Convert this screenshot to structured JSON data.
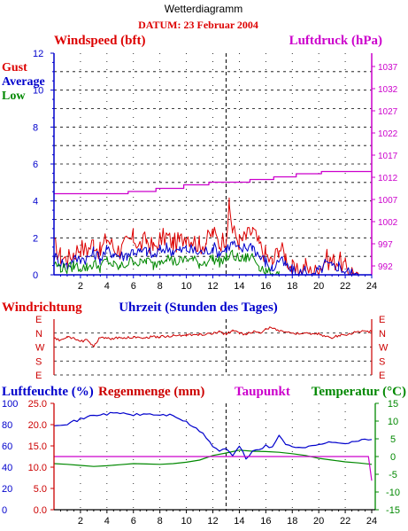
{
  "header": {
    "title": "Wetterdiagramm",
    "date": "DATUM: 23 Februar 2004"
  },
  "colors": {
    "gust": "#dd0000",
    "average": "#0000cc",
    "low": "#008800",
    "pressure": "#cc00cc",
    "wind_dir": "#cc0000",
    "humidity": "#0000cc",
    "rain": "#cc0000",
    "dewpoint": "#cc00cc",
    "temperature": "#008800"
  },
  "chart_data": [
    {
      "type": "line",
      "title": "Windspeed (bft)",
      "right_title": "Luftdruck (hPa)",
      "legend": [
        "Gust",
        "Average",
        "Low"
      ],
      "x_ticks": [
        2,
        4,
        6,
        8,
        10,
        12,
        14,
        16,
        18,
        20,
        22,
        24
      ],
      "y_ticks_left": [
        0,
        2,
        4,
        6,
        8,
        10,
        12
      ],
      "y_ticks_right": [
        992,
        997,
        1002,
        1007,
        1012,
        1017,
        1022,
        1027,
        1032,
        1037
      ],
      "xlim": [
        0,
        24
      ],
      "ylim": [
        0,
        12
      ],
      "ylim_right": [
        990,
        1040
      ],
      "grid": true,
      "marker_hour": 13,
      "series": [
        {
          "name": "Gust",
          "x": [
            0,
            0.5,
            1,
            1.5,
            2,
            2.5,
            3,
            3.5,
            4,
            4.5,
            5,
            5.5,
            6,
            6.5,
            7,
            7.5,
            8,
            8.5,
            9,
            9.5,
            10,
            10.5,
            11,
            11.5,
            12,
            12.5,
            13,
            13.25,
            13.5,
            14,
            14.5,
            15,
            15.5,
            16,
            16.5,
            17,
            17.5,
            18,
            18.5,
            19,
            19.5,
            20,
            20.5,
            21,
            21.5,
            22,
            22.5,
            23
          ],
          "values": [
            1.6,
            1.0,
            0.8,
            1.2,
            1.5,
            1.3,
            1.8,
            1.2,
            2.0,
            1.5,
            1.3,
            1.7,
            2.0,
            1.6,
            1.9,
            1.4,
            1.9,
            2.1,
            1.7,
            1.8,
            2.2,
            1.9,
            1.6,
            1.8,
            2.3,
            1.7,
            2.1,
            3.7,
            2.4,
            1.8,
            2.0,
            2.4,
            1.6,
            1.1,
            0.6,
            1.5,
            1.0,
            0.3,
            0.0,
            0.5,
            0.0,
            0.3,
            0.9,
            0.7,
            0.8,
            0.4,
            0.2,
            0.0
          ]
        },
        {
          "name": "Average",
          "x": [
            0,
            0.5,
            1,
            1.5,
            2,
            2.5,
            3,
            3.5,
            4,
            4.5,
            5,
            5.5,
            6,
            6.5,
            7,
            7.5,
            8,
            8.5,
            9,
            9.5,
            10,
            10.5,
            11,
            11.5,
            12,
            12.5,
            13,
            13.5,
            14,
            14.5,
            15,
            15.5,
            16,
            16.5,
            17,
            17.5,
            18,
            18.5,
            19,
            19.5,
            20,
            20.5,
            21,
            21.5,
            22,
            22.5,
            23
          ],
          "values": [
            1.0,
            0.7,
            0.5,
            0.8,
            0.9,
            0.9,
            1.2,
            0.9,
            1.3,
            1.2,
            1.0,
            1.1,
            1.3,
            1.2,
            1.3,
            1.0,
            1.3,
            1.5,
            1.3,
            1.3,
            1.4,
            1.3,
            1.2,
            1.3,
            1.5,
            1.2,
            1.4,
            1.7,
            1.3,
            1.5,
            1.6,
            1.0,
            0.7,
            0.3,
            0.8,
            0.5,
            0.2,
            0.0,
            0.3,
            0.0,
            0.2,
            0.6,
            0.4,
            0.5,
            0.2,
            0.1,
            0.0
          ]
        },
        {
          "name": "Low",
          "x": [
            0,
            0.5,
            1,
            1.5,
            2,
            2.5,
            3,
            3.5,
            4,
            4.5,
            5,
            5.5,
            6,
            6.5,
            7,
            7.5,
            8,
            8.5,
            9,
            9.5,
            10,
            10.5,
            11,
            11.5,
            12,
            12.5,
            13,
            13.5,
            14,
            14.5,
            15,
            15.5,
            16,
            16.5,
            17
          ],
          "values": [
            0.6,
            0.4,
            0.3,
            0.5,
            0.4,
            0.4,
            0.6,
            0.4,
            0.8,
            0.5,
            0.4,
            0.6,
            0.8,
            0.6,
            0.8,
            0.5,
            0.8,
            1.0,
            0.7,
            0.7,
            0.9,
            0.8,
            0.6,
            0.7,
            0.9,
            0.7,
            0.9,
            1.1,
            0.8,
            0.9,
            1.0,
            0.5,
            0.2,
            0.0,
            0.2
          ]
        },
        {
          "name": "Luftdruck",
          "axis": "right",
          "x": [
            0,
            5.6,
            5.6,
            7.7,
            7.7,
            9.8,
            9.8,
            11.7,
            11.7,
            14.8,
            14.8,
            16.6,
            16.6,
            18.3,
            18.3,
            20.2,
            20.2,
            24
          ],
          "values": [
            1008.3,
            1008.3,
            1008.8,
            1008.8,
            1009.5,
            1009.5,
            1010.3,
            1010.3,
            1010.9,
            1010.9,
            1011.5,
            1011.5,
            1012.1,
            1012.1,
            1012.8,
            1012.8,
            1013.3,
            1013.3
          ]
        }
      ]
    },
    {
      "type": "line",
      "title": "Windrichtung",
      "xlabel": "Uhrzeit (Stunden des Tages)",
      "y_categories": [
        "E",
        "N",
        "W",
        "S",
        "E"
      ],
      "xlim": [
        0,
        24
      ],
      "marker_hour": 13,
      "series": [
        {
          "name": "Windrichtung",
          "x": [
            0,
            0.5,
            1,
            1.5,
            2,
            2.5,
            3,
            3.5,
            4,
            5,
            6,
            7,
            8,
            9,
            10,
            11,
            12,
            12.5,
            13,
            13.5,
            14,
            14.5,
            15,
            15.5,
            16,
            16.5,
            17,
            17.5,
            18,
            18.5,
            19,
            19.5,
            20,
            20.5,
            21,
            21.5,
            22,
            22.5,
            23,
            23.5,
            24
          ],
          "values": [
            1.4,
            1.5,
            1.3,
            1.4,
            1.6,
            1.5,
            1.9,
            1.3,
            1.4,
            1.35,
            1.3,
            1.3,
            1.25,
            1.2,
            1.15,
            1.1,
            1.05,
            0.9,
            1.1,
            0.8,
            1.0,
            1.1,
            0.9,
            1.0,
            0.7,
            0.6,
            0.8,
            0.9,
            1.0,
            1.05,
            1.0,
            1.1,
            1.05,
            1.25,
            1.3,
            1.2,
            1.1,
            1.0,
            0.9,
            0.9,
            0.9
          ]
        }
      ]
    },
    {
      "type": "line",
      "titles": [
        "Luftfeuchte (%)",
        "Regenmenge (mm)",
        "Taupunkt",
        "Temperatur (°C)"
      ],
      "x_ticks": [
        2,
        4,
        6,
        8,
        10,
        12,
        14,
        16,
        18,
        20,
        22,
        24
      ],
      "y_ticks_humidity": [
        0,
        20,
        40,
        60,
        80,
        100
      ],
      "y_ticks_rain": [
        "0.0",
        "5.0",
        "10.0",
        "15.0",
        "20.0",
        "25.0"
      ],
      "y_ticks_temperature": [
        -15,
        -10,
        -5,
        0,
        5,
        10,
        15
      ],
      "xlim": [
        0,
        24
      ],
      "ylim_humidity": [
        0,
        100
      ],
      "ylim_temperature": [
        -15,
        15
      ],
      "marker_hour": 13,
      "series": [
        {
          "name": "Luftfeuchte",
          "axis": "humidity",
          "x": [
            0,
            1,
            2,
            3,
            4,
            5,
            6,
            7,
            8,
            9,
            10,
            11,
            11.5,
            12,
            12.5,
            13,
            13.5,
            14,
            14.5,
            15,
            15.5,
            16,
            16.5,
            17,
            17.5,
            18,
            19,
            20,
            21,
            22,
            23,
            24
          ],
          "values": [
            80,
            81,
            85,
            89,
            90,
            91,
            89,
            90,
            89,
            89,
            82,
            74,
            68,
            60,
            55,
            58,
            50,
            60,
            48,
            55,
            57,
            60,
            58,
            70,
            62,
            60,
            58,
            62,
            63,
            63,
            65,
            66
          ]
        },
        {
          "name": "Temperatur",
          "axis": "temperature",
          "x": [
            0,
            1,
            2,
            3,
            4,
            5,
            6,
            7,
            8,
            9,
            10,
            11,
            12,
            13,
            14,
            15,
            16,
            17,
            18,
            19,
            20,
            21,
            22,
            23,
            24
          ],
          "values": [
            -2.0,
            -2.2,
            -2.5,
            -2.8,
            -2.6,
            -2.3,
            -2.0,
            -2.1,
            -2.2,
            -2.0,
            -1.6,
            -1.0,
            0.3,
            1.0,
            1.8,
            1.5,
            1.4,
            1.2,
            0.8,
            0.3,
            -0.5,
            -1.0,
            -1.5,
            -1.8,
            -2.2
          ]
        },
        {
          "name": "Taupunkt",
          "axis": "temperature",
          "x": [
            0,
            1,
            2,
            3,
            4,
            5,
            6,
            7,
            8,
            9,
            10,
            11,
            11.5,
            12,
            12.5,
            13,
            13.5,
            14,
            14.5,
            15,
            15.5,
            16,
            16.5,
            17,
            17.5,
            18,
            19,
            20,
            21,
            22,
            23,
            24
          ],
          "values": [
            -5.0,
            -5.0,
            -4.5,
            -3.8,
            -3.5,
            -3.3,
            -3.5,
            -3.4,
            -3.5,
            -3.6,
            -4.0,
            -4.7,
            -5.5,
            -6.5,
            -7.0,
            -7.2,
            -7.8,
            -8.0,
            -8.2,
            -7.5,
            -7.8,
            -7.6,
            -7.0,
            -4.5,
            -5.5,
            -6.5,
            -7.0,
            -6.8,
            -6.5,
            -6.8,
            -7.2,
            -6.8
          ]
        }
      ]
    }
  ]
}
